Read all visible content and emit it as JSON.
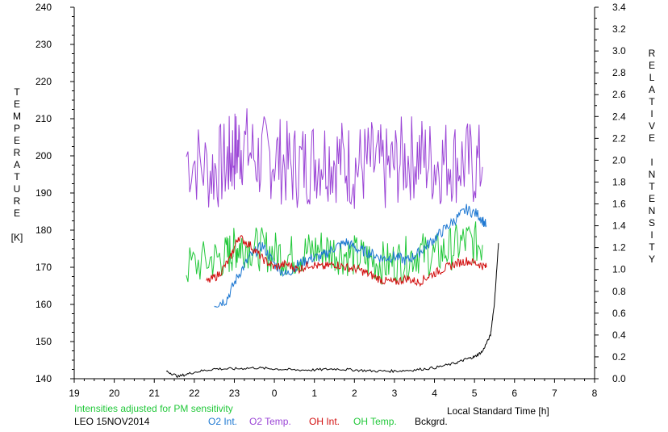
{
  "chart_data": {
    "type": "line",
    "xlabel": "Local Standard Time [h]",
    "ylabel_left": [
      "T",
      "E",
      "M",
      "P",
      "E",
      "R",
      "A",
      "T",
      "U",
      "R",
      "E",
      "",
      "[K]"
    ],
    "ylabel_right": [
      "R",
      "E",
      "L",
      "A",
      "T",
      "I",
      "V",
      "E",
      "",
      "I",
      "N",
      "T",
      "E",
      "N",
      "S",
      "I",
      "T",
      "Y"
    ],
    "x_ticks": [
      "19",
      "20",
      "21",
      "22",
      "23",
      "0",
      "1",
      "2",
      "3",
      "4",
      "5",
      "6",
      "7",
      "8"
    ],
    "x_range": [
      19,
      32
    ],
    "y_left_ticks": [
      140,
      150,
      160,
      170,
      180,
      190,
      200,
      210,
      220,
      230,
      240
    ],
    "y_left_range": [
      140,
      240
    ],
    "y_right_ticks": [
      0.0,
      0.2,
      0.4,
      0.6,
      0.8,
      1.0,
      1.2,
      1.4,
      1.6,
      1.8,
      2.0,
      2.2,
      2.4,
      2.6,
      2.8,
      3.0,
      3.2,
      3.4
    ],
    "y_right_range": [
      0.0,
      3.4
    ],
    "note": "Intensities adjusted for PM sensitivity",
    "station": "LEO 15NOV2014",
    "legend": [
      {
        "name": "O2 Int.",
        "color": "#1e78d2"
      },
      {
        "name": "O2 Temp.",
        "color": "#9b45d6"
      },
      {
        "name": "OH Int.",
        "color": "#d20f0f"
      },
      {
        "name": "OH Temp.",
        "color": "#22c83a"
      },
      {
        "name": "Bckgrd.",
        "color": "#000000"
      }
    ],
    "series": [
      {
        "name": "O2 Temp.",
        "axis": "left",
        "color": "#9b45d6",
        "x": [
          21.8,
          22.4,
          22.8,
          23.0,
          23.2,
          23.6,
          24.0,
          24.4,
          24.8,
          25.2,
          25.6,
          26.0,
          26.4,
          26.8,
          27.2,
          27.6,
          28.0,
          28.4,
          28.8,
          29.2
        ],
        "y": [
          200,
          196,
          198,
          201,
          203,
          199,
          200,
          197,
          198,
          200,
          199,
          197,
          198,
          196,
          199,
          200,
          198,
          199,
          198,
          197
        ]
      },
      {
        "name": "OH Temp.",
        "axis": "left",
        "color": "#22c83a",
        "x": [
          21.8,
          22.4,
          22.8,
          23.0,
          23.2,
          23.6,
          24.0,
          24.4,
          24.8,
          25.2,
          25.6,
          26.0,
          26.4,
          26.8,
          27.2,
          27.6,
          28.0,
          28.4,
          28.8,
          29.2
        ],
        "y": [
          170,
          172,
          173,
          175,
          176,
          175,
          174,
          173,
          174,
          175,
          174,
          173,
          172,
          171,
          172,
          174,
          173,
          175,
          177,
          176
        ]
      },
      {
        "name": "O2 Int.",
        "axis": "right",
        "color": "#1e78d2",
        "x": [
          22.5,
          22.8,
          23.1,
          23.4,
          23.7,
          24.0,
          24.3,
          24.6,
          24.9,
          25.2,
          25.5,
          25.8,
          26.1,
          26.4,
          26.7,
          27.0,
          27.3,
          27.6,
          27.9,
          28.2,
          28.5,
          28.8,
          29.1,
          29.3
        ],
        "y": [
          0.68,
          0.72,
          0.95,
          1.12,
          1.22,
          1.05,
          0.95,
          1.05,
          1.1,
          1.12,
          1.2,
          1.25,
          1.18,
          1.15,
          1.1,
          1.12,
          1.08,
          1.15,
          1.25,
          1.35,
          1.45,
          1.55,
          1.5,
          1.4
        ]
      },
      {
        "name": "OH Int.",
        "axis": "right",
        "color": "#d20f0f",
        "x": [
          22.3,
          22.6,
          22.9,
          23.1,
          23.4,
          23.7,
          24.0,
          24.3,
          24.6,
          24.9,
          25.2,
          25.5,
          25.8,
          26.1,
          26.4,
          26.7,
          27.0,
          27.3,
          27.6,
          27.9,
          28.2,
          28.5,
          28.8,
          29.1,
          29.3
        ],
        "y": [
          0.88,
          0.95,
          1.1,
          1.3,
          1.22,
          1.1,
          1.02,
          1.05,
          1.0,
          1.05,
          1.02,
          1.05,
          1.02,
          1.0,
          0.95,
          0.9,
          0.88,
          0.92,
          0.88,
          0.95,
          1.0,
          1.05,
          1.08,
          1.05,
          1.02
        ]
      },
      {
        "name": "Bckgrd.",
        "axis": "right",
        "color": "#000000",
        "x": [
          21.3,
          21.6,
          22.0,
          22.5,
          23.0,
          23.5,
          24.0,
          24.5,
          25.0,
          25.5,
          26.0,
          26.5,
          27.0,
          27.5,
          28.0,
          28.5,
          28.8,
          29.0,
          29.2,
          29.4,
          29.5,
          29.6
        ],
        "y": [
          0.07,
          0.02,
          0.06,
          0.09,
          0.09,
          0.1,
          0.09,
          0.08,
          0.08,
          0.09,
          0.08,
          0.07,
          0.07,
          0.08,
          0.1,
          0.14,
          0.18,
          0.2,
          0.25,
          0.4,
          0.7,
          1.24
        ]
      }
    ]
  }
}
